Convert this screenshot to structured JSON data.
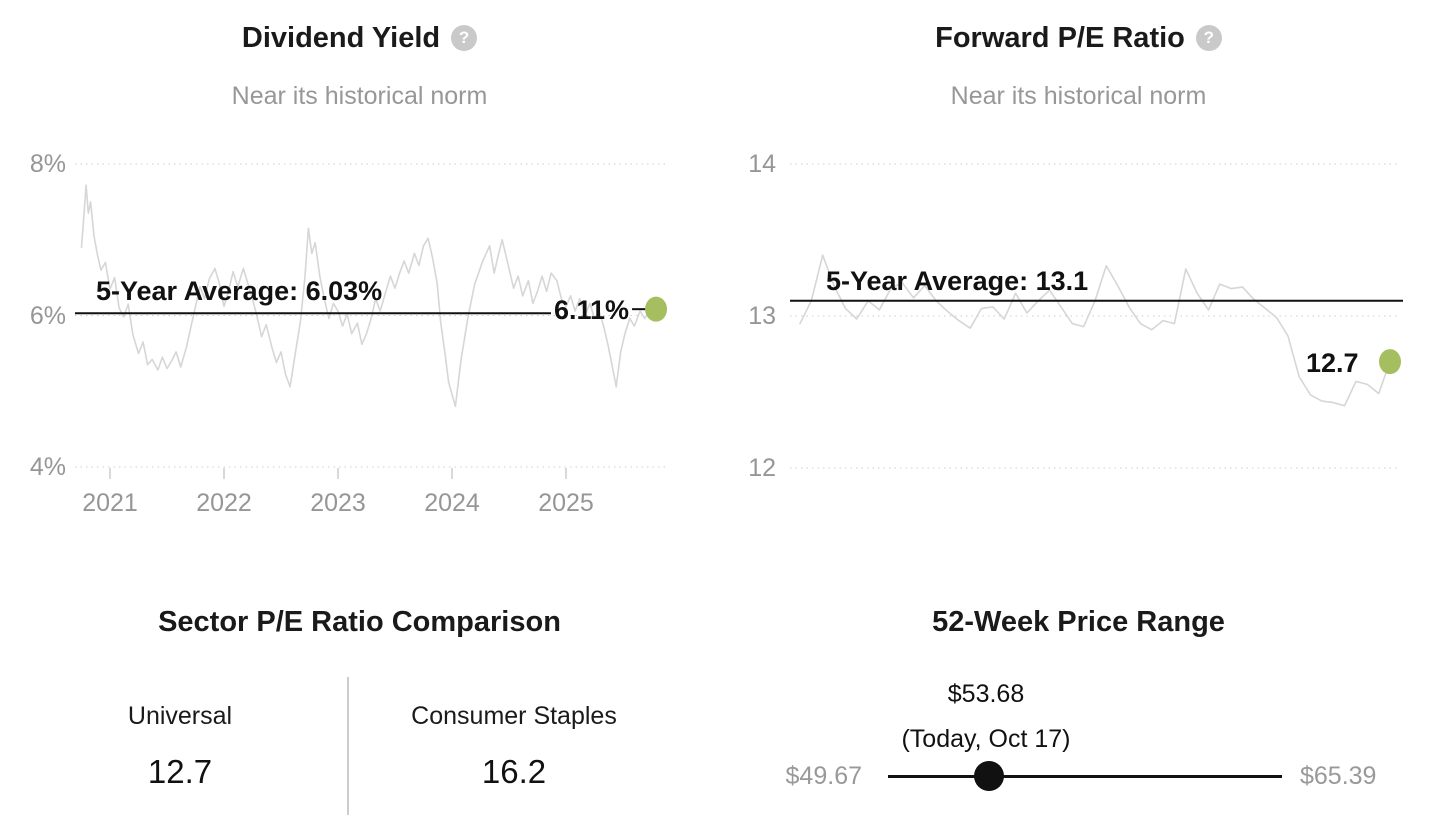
{
  "colors": {
    "accent_green": "#a5bf60",
    "average_line": "#111111",
    "series_line": "#d6d6d6",
    "muted_text": "#979797"
  },
  "panels": {
    "sector_comparison": {
      "title": "Sector P/E Ratio Comparison",
      "columns": [
        {
          "label": "Universal",
          "value": "12.7"
        },
        {
          "label": "Consumer Staples",
          "value": "16.2"
        }
      ]
    },
    "price_range": {
      "title": "52-Week Price Range",
      "current_label": "$53.68",
      "current_date": "(Today, Oct 17)",
      "low_label": "$49.67",
      "high_label": "$65.39",
      "low": 49.67,
      "high": 65.39,
      "current": 53.68
    }
  },
  "chart_data": [
    {
      "type": "line",
      "title": "Dividend Yield",
      "subtitle": "Near its historical norm",
      "help_icon": "question-mark",
      "ylim": [
        4,
        8
      ],
      "y_ticks": [
        "8%",
        "6%",
        "4%"
      ],
      "y_tick_values": [
        8,
        6,
        4
      ],
      "x_ticks": [
        "2021",
        "2022",
        "2023",
        "2024",
        "2025"
      ],
      "x_tick_values": [
        2021,
        2022,
        2023,
        2024,
        2025
      ],
      "average_label": "5-Year Average: 6.03%",
      "average_value": 6.03,
      "current_label": "6.11%",
      "current_value": 6.11,
      "grid": "dotted-horizontal",
      "legend": "none",
      "series": [
        {
          "name": "Dividend Yield (%)",
          "points": [
            [
              2020.75,
              6.9
            ],
            [
              2020.77,
              7.3
            ],
            [
              2020.79,
              7.72
            ],
            [
              2020.81,
              7.35
            ],
            [
              2020.83,
              7.5
            ],
            [
              2020.86,
              7.05
            ],
            [
              2020.89,
              6.8
            ],
            [
              2020.92,
              6.6
            ],
            [
              2020.96,
              6.7
            ],
            [
              2021.0,
              6.35
            ],
            [
              2021.04,
              6.5
            ],
            [
              2021.08,
              6.1
            ],
            [
              2021.12,
              5.98
            ],
            [
              2021.16,
              6.15
            ],
            [
              2021.2,
              5.75
            ],
            [
              2021.25,
              5.5
            ],
            [
              2021.29,
              5.65
            ],
            [
              2021.33,
              5.35
            ],
            [
              2021.37,
              5.42
            ],
            [
              2021.42,
              5.28
            ],
            [
              2021.46,
              5.45
            ],
            [
              2021.5,
              5.3
            ],
            [
              2021.54,
              5.4
            ],
            [
              2021.58,
              5.52
            ],
            [
              2021.62,
              5.32
            ],
            [
              2021.67,
              5.58
            ],
            [
              2021.71,
              5.85
            ],
            [
              2021.75,
              6.12
            ],
            [
              2021.79,
              6.38
            ],
            [
              2021.83,
              6.22
            ],
            [
              2021.87,
              6.48
            ],
            [
              2021.92,
              6.62
            ],
            [
              2021.96,
              6.42
            ],
            [
              2022.0,
              6.12
            ],
            [
              2022.04,
              6.32
            ],
            [
              2022.08,
              6.58
            ],
            [
              2022.12,
              6.38
            ],
            [
              2022.17,
              6.62
            ],
            [
              2022.21,
              6.42
            ],
            [
              2022.25,
              6.22
            ],
            [
              2022.29,
              5.98
            ],
            [
              2022.33,
              5.72
            ],
            [
              2022.37,
              5.88
            ],
            [
              2022.42,
              5.58
            ],
            [
              2022.46,
              5.38
            ],
            [
              2022.5,
              5.52
            ],
            [
              2022.54,
              5.22
            ],
            [
              2022.58,
              5.06
            ],
            [
              2022.62,
              5.45
            ],
            [
              2022.67,
              5.92
            ],
            [
              2022.71,
              6.5
            ],
            [
              2022.74,
              7.15
            ],
            [
              2022.77,
              6.82
            ],
            [
              2022.8,
              6.96
            ],
            [
              2022.84,
              6.52
            ],
            [
              2022.88,
              6.22
            ],
            [
              2022.92,
              5.96
            ],
            [
              2022.96,
              6.16
            ],
            [
              2023.0,
              6.06
            ],
            [
              2023.04,
              5.86
            ],
            [
              2023.08,
              6.02
            ],
            [
              2023.12,
              5.76
            ],
            [
              2023.17,
              5.9
            ],
            [
              2023.21,
              5.62
            ],
            [
              2023.25,
              5.76
            ],
            [
              2023.29,
              5.96
            ],
            [
              2023.33,
              6.22
            ],
            [
              2023.37,
              6.06
            ],
            [
              2023.42,
              6.32
            ],
            [
              2023.46,
              6.52
            ],
            [
              2023.5,
              6.36
            ],
            [
              2023.54,
              6.56
            ],
            [
              2023.58,
              6.72
            ],
            [
              2023.62,
              6.56
            ],
            [
              2023.67,
              6.82
            ],
            [
              2023.71,
              6.66
            ],
            [
              2023.75,
              6.92
            ],
            [
              2023.79,
              7.02
            ],
            [
              2023.83,
              6.76
            ],
            [
              2023.87,
              6.42
            ],
            [
              2023.9,
              5.92
            ],
            [
              2023.94,
              5.48
            ],
            [
              2023.97,
              5.12
            ],
            [
              2024.0,
              4.96
            ],
            [
              2024.03,
              4.8
            ],
            [
              2024.08,
              5.42
            ],
            [
              2024.14,
              5.98
            ],
            [
              2024.2,
              6.42
            ],
            [
              2024.27,
              6.72
            ],
            [
              2024.33,
              6.92
            ],
            [
              2024.37,
              6.56
            ],
            [
              2024.4,
              6.76
            ],
            [
              2024.44,
              7.0
            ],
            [
              2024.5,
              6.62
            ],
            [
              2024.54,
              6.36
            ],
            [
              2024.58,
              6.52
            ],
            [
              2024.62,
              6.26
            ],
            [
              2024.67,
              6.46
            ],
            [
              2024.71,
              6.16
            ],
            [
              2024.75,
              6.32
            ],
            [
              2024.79,
              6.52
            ],
            [
              2024.83,
              6.32
            ],
            [
              2024.87,
              6.56
            ],
            [
              2024.92,
              6.46
            ],
            [
              2024.96,
              6.22
            ],
            [
              2025.0,
              6.12
            ],
            [
              2025.04,
              6.26
            ],
            [
              2025.08,
              6.06
            ],
            [
              2025.12,
              6.22
            ],
            [
              2025.17,
              6.02
            ],
            [
              2025.21,
              6.16
            ],
            [
              2025.25,
              5.96
            ],
            [
              2025.29,
              6.06
            ],
            [
              2025.33,
              5.86
            ],
            [
              2025.37,
              5.6
            ],
            [
              2025.41,
              5.3
            ],
            [
              2025.44,
              5.06
            ],
            [
              2025.48,
              5.52
            ],
            [
              2025.52,
              5.78
            ],
            [
              2025.56,
              5.96
            ],
            [
              2025.6,
              5.86
            ],
            [
              2025.65,
              6.06
            ],
            [
              2025.69,
              5.96
            ],
            [
              2025.73,
              6.06
            ],
            [
              2025.76,
              6.0
            ],
            [
              2025.79,
              6.11
            ]
          ]
        }
      ]
    },
    {
      "type": "line",
      "title": "Forward P/E Ratio",
      "subtitle": "Near its historical norm",
      "help_icon": "question-mark",
      "ylim": [
        12,
        14
      ],
      "y_ticks": [
        "14",
        "13",
        "12"
      ],
      "y_tick_values": [
        14,
        13,
        12
      ],
      "x_ticks": [],
      "average_label": "5-Year Average: 13.1",
      "average_value": 13.1,
      "current_label": "12.7",
      "current_value": 12.7,
      "grid": "dotted-horizontal",
      "legend": "none",
      "series": [
        {
          "name": "Forward P/E",
          "values": [
            12.95,
            13.1,
            13.4,
            13.2,
            13.05,
            12.98,
            13.1,
            13.04,
            13.18,
            13.22,
            13.12,
            13.2,
            13.1,
            13.03,
            12.97,
            12.92,
            13.05,
            13.06,
            12.98,
            13.15,
            13.02,
            13.1,
            13.17,
            13.06,
            12.95,
            12.93,
            13.1,
            13.33,
            13.2,
            13.06,
            12.95,
            12.91,
            12.97,
            12.95,
            13.31,
            13.15,
            13.04,
            13.21,
            13.18,
            13.19,
            13.11,
            13.05,
            12.99,
            12.87,
            12.6,
            12.48,
            12.44,
            12.43,
            12.41,
            12.57,
            12.55,
            12.49,
            12.7
          ]
        }
      ]
    }
  ]
}
